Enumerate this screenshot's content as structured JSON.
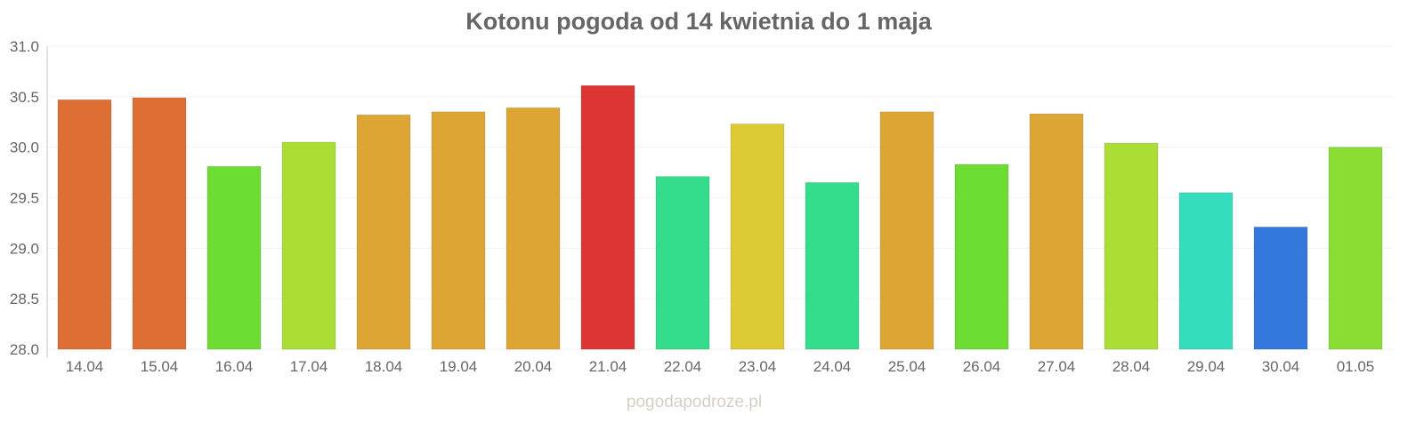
{
  "chart_data": {
    "type": "bar",
    "title": "Kotonu pogoda od 14 kwietnia do 1 maja",
    "xlabel": "",
    "ylabel": "",
    "ylim": [
      28.0,
      31.0
    ],
    "yticks": [
      "28.0",
      "28.5",
      "29.0",
      "29.5",
      "30.0",
      "30.5",
      "31.0"
    ],
    "grid": true,
    "categories": [
      "14.04",
      "15.04",
      "16.04",
      "17.04",
      "18.04",
      "19.04",
      "20.04",
      "21.04",
      "22.04",
      "23.04",
      "24.04",
      "25.04",
      "26.04",
      "27.04",
      "28.04",
      "29.04",
      "30.04",
      "01.05"
    ],
    "values": [
      30.47,
      30.49,
      29.81,
      30.05,
      30.32,
      30.35,
      30.39,
      30.61,
      29.71,
      30.23,
      29.65,
      30.35,
      29.83,
      30.33,
      30.04,
      29.55,
      29.21,
      30.0
    ],
    "colors": [
      "#dd6f34",
      "#dd6f34",
      "#6ddd34",
      "#abdd34",
      "#dda534",
      "#dda534",
      "#dda534",
      "#dd3434",
      "#34dd8c",
      "#ddcb34",
      "#34dd8c",
      "#dda534",
      "#6ddd34",
      "#dda534",
      "#abdd34",
      "#34ddbd",
      "#3477dd",
      "#8bdd34"
    ]
  },
  "watermark": "pogodapodroze.pl"
}
